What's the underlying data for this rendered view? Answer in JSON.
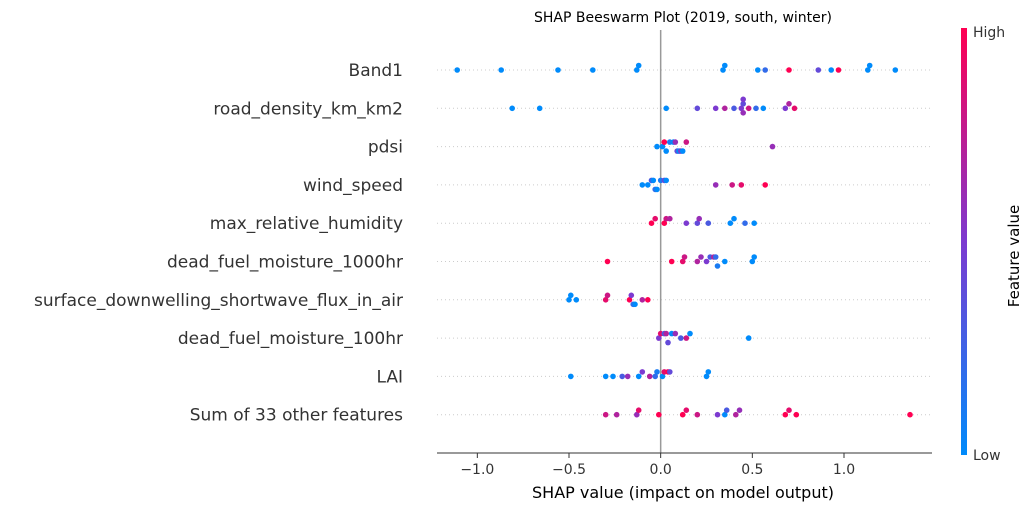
{
  "chart_data": {
    "type": "scatter",
    "title": "SHAP Beeswarm Plot (2019, south, winter)",
    "xlabel": "SHAP value (impact on model output)",
    "ylabel": "",
    "xlim": [
      -1.22,
      1.48
    ],
    "xticks": [
      {
        "value": -1.0,
        "label": "−1.0"
      },
      {
        "value": -0.5,
        "label": "−0.5"
      },
      {
        "value": 0.0,
        "label": "0.0"
      },
      {
        "value": 0.5,
        "label": "0.5"
      },
      {
        "value": 1.0,
        "label": "1.0"
      }
    ],
    "features": [
      "Band1",
      "road_density_km_km2",
      "pdsi",
      "wind_speed",
      "max_relative_humidity",
      "dead_fuel_moisture_1000hr",
      "surface_downwelling_shortwave_flux_in_air",
      "dead_fuel_moisture_100hr",
      "LAI",
      "Sum of 33 other features"
    ],
    "colorbar": {
      "label": "Feature value",
      "high_label": "High",
      "low_label": "Low",
      "low_color": "#008bfb",
      "high_color": "#ff0052"
    },
    "points": [
      [
        {
          "x": -1.11,
          "c": 0.0
        },
        {
          "x": -0.87,
          "c": 0.0
        },
        {
          "x": -0.56,
          "c": 0.0
        },
        {
          "x": -0.37,
          "c": 0.0
        },
        {
          "x": -0.13,
          "c": 0.0
        },
        {
          "x": -0.12,
          "c": 0.0
        },
        {
          "x": 0.34,
          "c": 0.0
        },
        {
          "x": 0.35,
          "c": 0.0
        },
        {
          "x": 0.53,
          "c": 0.0
        },
        {
          "x": 0.57,
          "c": 0.2
        },
        {
          "x": 0.7,
          "c": 1.0
        },
        {
          "x": 0.86,
          "c": 0.4
        },
        {
          "x": 0.93,
          "c": 0.0
        },
        {
          "x": 0.97,
          "c": 1.0
        },
        {
          "x": 1.13,
          "c": 0.0
        },
        {
          "x": 1.14,
          "c": 0.0
        },
        {
          "x": 1.28,
          "c": 0.0
        }
      ],
      [
        {
          "x": -0.81,
          "c": 0.0
        },
        {
          "x": -0.66,
          "c": 0.0
        },
        {
          "x": 0.03,
          "c": 0.0
        },
        {
          "x": 0.2,
          "c": 0.4
        },
        {
          "x": 0.3,
          "c": 0.5
        },
        {
          "x": 0.35,
          "c": 0.7
        },
        {
          "x": 0.4,
          "c": 0.3
        },
        {
          "x": 0.44,
          "c": 0.5
        },
        {
          "x": 0.45,
          "c": 0.4
        },
        {
          "x": 0.45,
          "c": 0.6
        },
        {
          "x": 0.45,
          "c": 0.5
        },
        {
          "x": 0.48,
          "c": 0.8
        },
        {
          "x": 0.52,
          "c": 0.2
        },
        {
          "x": 0.56,
          "c": 0.0
        },
        {
          "x": 0.68,
          "c": 0.5
        },
        {
          "x": 0.7,
          "c": 0.7
        },
        {
          "x": 0.73,
          "c": 0.9
        }
      ],
      [
        {
          "x": -0.02,
          "c": 0.0
        },
        {
          "x": 0.01,
          "c": 0.0
        },
        {
          "x": 0.02,
          "c": 1.0
        },
        {
          "x": 0.03,
          "c": 0.0
        },
        {
          "x": 0.05,
          "c": 0.1
        },
        {
          "x": 0.07,
          "c": 0.0
        },
        {
          "x": 0.08,
          "c": 0.6
        },
        {
          "x": 0.09,
          "c": 0.4
        },
        {
          "x": 0.1,
          "c": 0.0
        },
        {
          "x": 0.11,
          "c": 0.5
        },
        {
          "x": 0.12,
          "c": 0.0
        },
        {
          "x": 0.14,
          "c": 0.8
        },
        {
          "x": 0.61,
          "c": 0.6
        }
      ],
      [
        {
          "x": -0.1,
          "c": 0.0
        },
        {
          "x": -0.07,
          "c": 0.0
        },
        {
          "x": -0.05,
          "c": 0.3
        },
        {
          "x": -0.04,
          "c": 0.0
        },
        {
          "x": -0.03,
          "c": 0.2
        },
        {
          "x": -0.02,
          "c": 0.0
        },
        {
          "x": 0.0,
          "c": 0.1
        },
        {
          "x": 0.02,
          "c": 0.4
        },
        {
          "x": 0.03,
          "c": 0.0
        },
        {
          "x": 0.3,
          "c": 0.6
        },
        {
          "x": 0.39,
          "c": 0.8
        },
        {
          "x": 0.44,
          "c": 0.9
        },
        {
          "x": 0.57,
          "c": 1.0
        }
      ],
      [
        {
          "x": -0.05,
          "c": 1.0
        },
        {
          "x": -0.03,
          "c": 0.9
        },
        {
          "x": 0.02,
          "c": 1.0
        },
        {
          "x": 0.03,
          "c": 0.8
        },
        {
          "x": 0.05,
          "c": 0.7
        },
        {
          "x": 0.14,
          "c": 0.5
        },
        {
          "x": 0.2,
          "c": 0.4
        },
        {
          "x": 0.21,
          "c": 0.6
        },
        {
          "x": 0.26,
          "c": 0.3
        },
        {
          "x": 0.38,
          "c": 0.0
        },
        {
          "x": 0.4,
          "c": 0.0
        },
        {
          "x": 0.46,
          "c": 0.2
        },
        {
          "x": 0.51,
          "c": 0.0
        }
      ],
      [
        {
          "x": -0.29,
          "c": 1.0
        },
        {
          "x": 0.06,
          "c": 1.0
        },
        {
          "x": 0.12,
          "c": 0.9
        },
        {
          "x": 0.13,
          "c": 0.8
        },
        {
          "x": 0.2,
          "c": 0.7
        },
        {
          "x": 0.22,
          "c": 0.6
        },
        {
          "x": 0.25,
          "c": 0.5
        },
        {
          "x": 0.27,
          "c": 0.3
        },
        {
          "x": 0.29,
          "c": 0.7
        },
        {
          "x": 0.3,
          "c": 0.2
        },
        {
          "x": 0.31,
          "c": 0.1
        },
        {
          "x": 0.35,
          "c": 0.0
        },
        {
          "x": 0.5,
          "c": 0.0
        },
        {
          "x": 0.51,
          "c": 0.0
        }
      ],
      [
        {
          "x": -0.5,
          "c": 0.0
        },
        {
          "x": -0.49,
          "c": 0.0
        },
        {
          "x": -0.46,
          "c": 0.0
        },
        {
          "x": -0.3,
          "c": 0.9
        },
        {
          "x": -0.29,
          "c": 0.8
        },
        {
          "x": -0.17,
          "c": 1.0
        },
        {
          "x": -0.16,
          "c": 0.5
        },
        {
          "x": -0.15,
          "c": 0.2
        },
        {
          "x": -0.14,
          "c": 0.0
        },
        {
          "x": -0.1,
          "c": 0.7
        },
        {
          "x": -0.07,
          "c": 1.0
        }
      ],
      [
        {
          "x": -0.01,
          "c": 0.5
        },
        {
          "x": 0.0,
          "c": 0.9
        },
        {
          "x": 0.02,
          "c": 0.3
        },
        {
          "x": 0.03,
          "c": 0.7
        },
        {
          "x": 0.04,
          "c": 0.4
        },
        {
          "x": 0.06,
          "c": 0.0
        },
        {
          "x": 0.08,
          "c": 0.6
        },
        {
          "x": 0.11,
          "c": 0.3
        },
        {
          "x": 0.14,
          "c": 0.8
        },
        {
          "x": 0.16,
          "c": 0.0
        },
        {
          "x": 0.48,
          "c": 0.0
        }
      ],
      [
        {
          "x": -0.49,
          "c": 0.0
        },
        {
          "x": -0.3,
          "c": 0.0
        },
        {
          "x": -0.26,
          "c": 0.0
        },
        {
          "x": -0.21,
          "c": 0.3
        },
        {
          "x": -0.18,
          "c": 0.6
        },
        {
          "x": -0.12,
          "c": 0.0
        },
        {
          "x": -0.1,
          "c": 0.5
        },
        {
          "x": -0.06,
          "c": 0.7
        },
        {
          "x": -0.03,
          "c": 0.2
        },
        {
          "x": -0.02,
          "c": 0.1
        },
        {
          "x": 0.01,
          "c": 0.0
        },
        {
          "x": 0.02,
          "c": 0.9
        },
        {
          "x": 0.04,
          "c": 1.0
        },
        {
          "x": 0.05,
          "c": 0.4
        },
        {
          "x": 0.25,
          "c": 0.0
        },
        {
          "x": 0.26,
          "c": 0.0
        }
      ],
      [
        {
          "x": -0.3,
          "c": 0.8
        },
        {
          "x": -0.24,
          "c": 0.7
        },
        {
          "x": -0.13,
          "c": 0.6
        },
        {
          "x": -0.12,
          "c": 0.9
        },
        {
          "x": -0.01,
          "c": 1.0
        },
        {
          "x": 0.12,
          "c": 1.0
        },
        {
          "x": 0.14,
          "c": 0.9
        },
        {
          "x": 0.2,
          "c": 0.8
        },
        {
          "x": 0.31,
          "c": 0.5
        },
        {
          "x": 0.35,
          "c": 0.0
        },
        {
          "x": 0.36,
          "c": 0.3
        },
        {
          "x": 0.41,
          "c": 0.7
        },
        {
          "x": 0.43,
          "c": 0.6
        },
        {
          "x": 0.68,
          "c": 1.0
        },
        {
          "x": 0.7,
          "c": 0.9
        },
        {
          "x": 0.74,
          "c": 1.0
        },
        {
          "x": 1.36,
          "c": 1.0
        }
      ]
    ]
  }
}
